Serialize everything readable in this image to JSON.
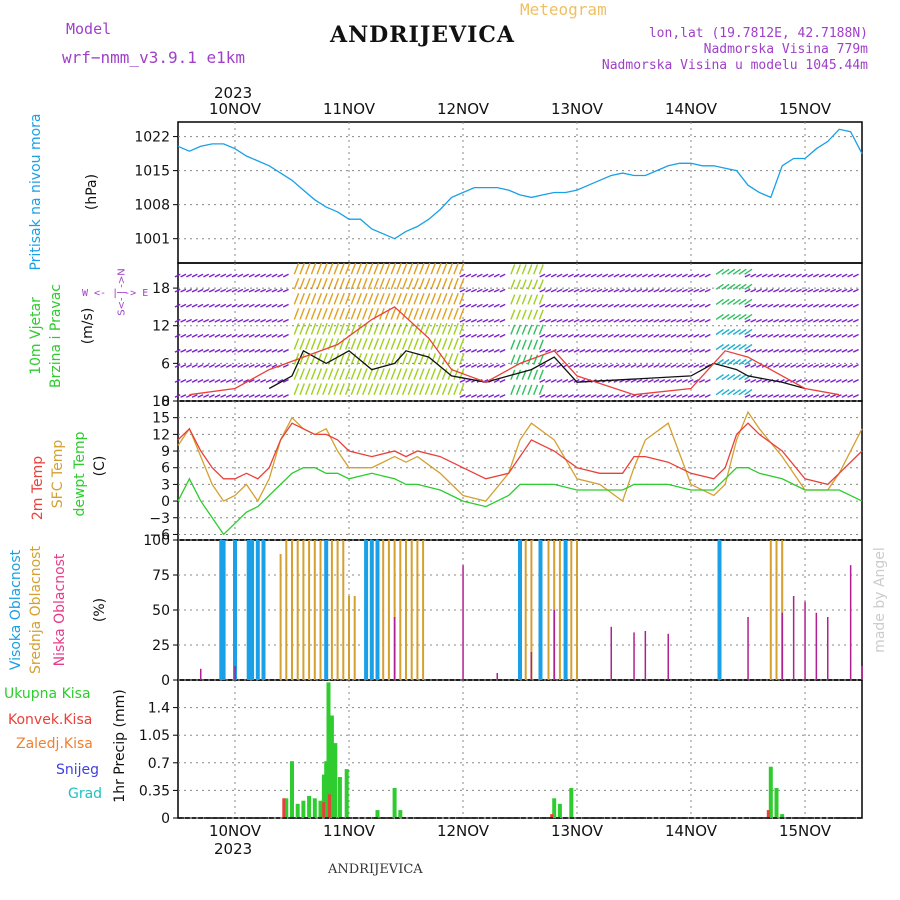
{
  "header": {
    "model_label": "Model",
    "model_name": "wrf−nmm_v3.9.1  e1km",
    "station": "ANDRIJEVICA",
    "meteogram": "Meteogram",
    "lonlat": "lon,lat (19.7812E, 42.7188N)",
    "elevation": "Nadmorska Visina 779m",
    "model_elevation": "Nadmorska Visina u modelu 1045.44m",
    "year_top": "2023",
    "year_bottom": "2023",
    "footer_station": "ANDRIJEVICA",
    "credit": "made by Angel"
  },
  "colors": {
    "pressure": "#1aa0e6",
    "temp2m": "#e8413a",
    "sfc_temp": "#d4a030",
    "dewpt": "#2ecc2e",
    "high_cloud": "#1aa0e6",
    "mid_cloud": "#d4a030",
    "low_cloud": "#b02090",
    "label_purple": "#a040c8",
    "snow": "#4040e0",
    "hail": "#20c0c0",
    "frozen": "#f08030"
  },
  "panel_labels": {
    "pressure": {
      "title": "Pritisak na nivou mora",
      "unit": "(hPa)"
    },
    "wind": {
      "title1": "10m Vjetar",
      "title2": "Brzina i Pravac",
      "unit": "(m/s)",
      "compass": "W  <- | ->  E",
      "compass_sn": "S<- | ->N"
    },
    "temp": {
      "t2m": "2m Temp",
      "sfc": "SFC Temp",
      "dew": "dewpt Temp",
      "unit": "(C)"
    },
    "cloud": {
      "high": "Visoka Oblacnost",
      "mid": "Srednja Oblacnost",
      "low": "Niska Oblacnost",
      "unit": "(%)"
    },
    "precip": {
      "total": "Ukupna Kisa",
      "conv": "Konvek.Kisa",
      "frozen": "Zaledj.Kisa",
      "snow": "Snijeg",
      "hail": "Grad",
      "unit": "1hr Precip (mm)"
    }
  },
  "chart_data": [
    {
      "type": "line",
      "name": "pressure",
      "x_days": [
        "10NOV",
        "11NOV",
        "12NOV",
        "13NOV",
        "14NOV",
        "15NOV"
      ],
      "y_ticks": [
        1001,
        1008,
        1015,
        1022
      ],
      "ylim": [
        996,
        1025
      ],
      "series": [
        {
          "x": [
            9.5,
            9.6,
            9.7,
            9.8,
            9.9,
            10.0,
            10.1,
            10.2,
            10.3,
            10.4,
            10.5,
            10.6,
            10.7,
            10.8,
            10.9,
            11.0,
            11.1,
            11.2,
            11.3,
            11.4,
            11.5,
            11.6,
            11.7,
            11.8,
            11.9,
            12.0,
            12.1,
            12.2,
            12.3,
            12.4,
            12.5,
            12.6,
            12.7,
            12.8,
            12.9,
            13.0,
            13.1,
            13.2,
            13.3,
            13.4,
            13.5,
            13.6,
            13.7,
            13.8,
            13.9,
            14.0,
            14.1,
            14.2,
            14.3,
            14.4,
            14.5,
            14.6,
            14.7,
            14.8,
            14.9,
            15.0,
            15.1,
            15.2,
            15.3,
            15.4,
            15.5
          ],
          "y": [
            1020,
            1019,
            1020,
            1020.5,
            1020.5,
            1019.5,
            1018,
            1017,
            1016,
            1014.5,
            1013,
            1011,
            1009,
            1007.5,
            1006.5,
            1005,
            1005,
            1003,
            1002,
            1001,
            1002.5,
            1003.5,
            1005,
            1007,
            1009.5,
            1010.5,
            1011.5,
            1011.5,
            1011.5,
            1011,
            1010,
            1009.5,
            1010,
            1010.5,
            1010.5,
            1011,
            1012,
            1013,
            1014,
            1014.5,
            1014,
            1014,
            1015,
            1016,
            1016.5,
            1016.5,
            1016,
            1016,
            1015.5,
            1015,
            1012,
            1010.5,
            1009.5,
            1016,
            1017.5,
            1017.5,
            1019.5,
            1021,
            1023.5,
            1023,
            1018.5
          ]
        }
      ]
    },
    {
      "type": "line",
      "name": "wind",
      "y_ticks": [
        0,
        6,
        12,
        18
      ],
      "ylim": [
        0,
        22
      ],
      "series": [
        {
          "name": "speed",
          "x": [
            10.3,
            10.5,
            10.6,
            10.8,
            11.0,
            11.2,
            11.4,
            11.5,
            11.7,
            11.9,
            12.2,
            12.4,
            12.6,
            12.8,
            13.0,
            14.0,
            14.2,
            14.4,
            14.5,
            14.8,
            15.0
          ],
          "y": [
            2,
            4,
            8,
            6,
            8,
            5,
            6,
            8,
            7,
            4,
            3,
            4,
            5,
            7,
            3,
            4,
            6,
            5,
            4,
            3,
            2
          ]
        },
        {
          "name": "gust",
          "x": [
            9.6,
            10.0,
            10.3,
            10.6,
            10.9,
            11.2,
            11.4,
            11.7,
            11.9,
            12.2,
            12.5,
            12.8,
            13.0,
            13.5,
            14.0,
            14.3,
            14.5,
            14.8,
            15.0,
            15.3
          ],
          "y": [
            1,
            2,
            5,
            7,
            9,
            13,
            15,
            10,
            5,
            3,
            6,
            8,
            4,
            1,
            2,
            8,
            7,
            4,
            2,
            1
          ]
        }
      ]
    },
    {
      "type": "line",
      "name": "temperature",
      "y_ticks": [
        -6,
        -3,
        0,
        3,
        6,
        9,
        12,
        15,
        18
      ],
      "ylim": [
        -7,
        18
      ],
      "series": [
        {
          "name": "2m Temp",
          "x": [
            9.5,
            9.6,
            9.7,
            9.8,
            9.9,
            10.0,
            10.1,
            10.2,
            10.3,
            10.4,
            10.5,
            10.6,
            10.7,
            10.8,
            10.9,
            11.0,
            11.2,
            11.4,
            11.5,
            11.6,
            11.8,
            12.0,
            12.2,
            12.4,
            12.5,
            12.6,
            12.8,
            13.0,
            13.2,
            13.4,
            13.5,
            13.6,
            13.8,
            14.0,
            14.2,
            14.3,
            14.4,
            14.5,
            14.6,
            14.8,
            15.0,
            15.2,
            15.3,
            15.5
          ],
          "y": [
            11,
            13,
            9,
            6,
            4,
            4,
            5,
            4,
            6,
            11,
            14,
            13,
            12,
            12,
            11,
            9,
            8,
            9,
            8,
            9,
            8,
            6,
            4,
            5,
            8,
            11,
            9,
            6,
            5,
            5,
            8,
            8,
            7,
            5,
            4,
            6,
            12,
            14,
            12,
            9,
            4,
            3,
            5,
            9
          ]
        },
        {
          "name": "SFC Temp",
          "x": [
            9.5,
            9.6,
            9.7,
            9.8,
            9.9,
            10.0,
            10.1,
            10.2,
            10.3,
            10.4,
            10.5,
            10.6,
            10.7,
            10.8,
            10.9,
            11.0,
            11.2,
            11.4,
            11.5,
            11.6,
            11.8,
            12.0,
            12.2,
            12.4,
            12.5,
            12.6,
            12.8,
            13.0,
            13.2,
            13.4,
            13.5,
            13.6,
            13.8,
            14.0,
            14.2,
            14.3,
            14.4,
            14.5,
            14.6,
            14.8,
            15.0,
            15.2,
            15.3,
            15.5
          ],
          "y": [
            10,
            13,
            8,
            3,
            0,
            1,
            3,
            0,
            4,
            11,
            15,
            13,
            12,
            13,
            9,
            6,
            6,
            8,
            7,
            8,
            5,
            1,
            0,
            5,
            11,
            14,
            11,
            4,
            3,
            0,
            6,
            11,
            14,
            3,
            1,
            3,
            11,
            16,
            13,
            8,
            2,
            2,
            5,
            13
          ]
        },
        {
          "name": "dewpt Temp",
          "x": [
            9.5,
            9.6,
            9.7,
            9.8,
            9.9,
            10.0,
            10.1,
            10.2,
            10.3,
            10.4,
            10.5,
            10.6,
            10.7,
            10.8,
            10.9,
            11.0,
            11.2,
            11.4,
            11.5,
            11.6,
            11.8,
            12.0,
            12.2,
            12.4,
            12.5,
            12.6,
            12.8,
            13.0,
            13.2,
            13.4,
            13.5,
            13.6,
            13.8,
            14.0,
            14.2,
            14.3,
            14.4,
            14.5,
            14.6,
            14.8,
            15.0,
            15.2,
            15.3,
            15.5
          ],
          "y": [
            0,
            4,
            0,
            -3,
            -6,
            -4,
            -2,
            -1,
            1,
            3,
            5,
            6,
            6,
            5,
            5,
            4,
            5,
            4,
            3,
            3,
            2,
            0,
            -1,
            1,
            3,
            3,
            3,
            2,
            2,
            2,
            3,
            3,
            3,
            2,
            2,
            4,
            6,
            6,
            5,
            4,
            2,
            2,
            2,
            0
          ]
        }
      ]
    },
    {
      "type": "bar",
      "name": "cloud_cover",
      "y_ticks": [
        0,
        25,
        50,
        75,
        100
      ],
      "ylim": [
        0,
        100
      ],
      "series": [
        {
          "name": "high",
          "x": [
            9.88,
            9.9,
            10.0,
            10.12,
            10.15,
            10.2,
            10.25,
            10.8,
            11.15,
            11.2,
            11.25,
            12.5,
            12.68,
            12.9,
            14.25
          ],
          "y": [
            100,
            100,
            100,
            100,
            100,
            100,
            100,
            100,
            100,
            100,
            100,
            100,
            100,
            100,
            100
          ]
        },
        {
          "name": "mid",
          "x": [
            10.4,
            10.45,
            10.5,
            10.55,
            10.6,
            10.65,
            10.7,
            10.75,
            10.85,
            10.9,
            10.95,
            11.0,
            11.05,
            11.3,
            11.35,
            11.4,
            11.45,
            11.5,
            11.55,
            11.6,
            11.65,
            12.55,
            12.6,
            12.75,
            12.8,
            12.85,
            12.95,
            13.0,
            14.7,
            14.75,
            14.8
          ],
          "y": [
            90,
            100,
            100,
            100,
            100,
            100,
            100,
            100,
            100,
            100,
            100,
            60,
            60,
            100,
            100,
            100,
            100,
            100,
            100,
            100,
            100,
            100,
            100,
            100,
            100,
            100,
            100,
            100,
            100,
            100,
            100
          ]
        },
        {
          "name": "low",
          "x": [
            9.7,
            10.0,
            11.4,
            12.0,
            12.3,
            12.6,
            12.8,
            13.3,
            13.5,
            13.6,
            13.8,
            14.5,
            14.8,
            14.9,
            15.0,
            15.1,
            15.2,
            15.4,
            15.5
          ],
          "y": [
            8,
            10,
            45,
            82,
            5,
            20,
            50,
            38,
            34,
            35,
            33,
            45,
            48,
            60,
            56,
            48,
            45,
            82,
            10
          ]
        }
      ]
    },
    {
      "type": "bar",
      "name": "precipitation",
      "y_ticks": [
        0,
        0.35,
        0.7,
        1.05,
        1.4
      ],
      "ylim": [
        0,
        1.75
      ],
      "series": [
        {
          "name": "Ukupna Kisa",
          "x": [
            10.45,
            10.5,
            10.55,
            10.6,
            10.65,
            10.7,
            10.75,
            10.78,
            10.8,
            10.82,
            10.85,
            10.88,
            10.92,
            10.98,
            11.25,
            11.4,
            11.45,
            12.8,
            12.85,
            12.95,
            14.7,
            14.75,
            14.8
          ],
          "y": [
            0.25,
            0.72,
            0.18,
            0.22,
            0.28,
            0.25,
            0.22,
            0.55,
            0.72,
            1.72,
            1.3,
            0.95,
            0.52,
            0.62,
            0.1,
            0.38,
            0.1,
            0.25,
            0.18,
            0.38,
            0.65,
            0.38,
            0.05
          ]
        },
        {
          "name": "Konvek.Kisa",
          "x": [
            10.45,
            10.8,
            10.85,
            12.8,
            14.7
          ],
          "y": [
            0.25,
            0.2,
            0.3,
            0.05,
            0.1
          ]
        }
      ]
    }
  ]
}
